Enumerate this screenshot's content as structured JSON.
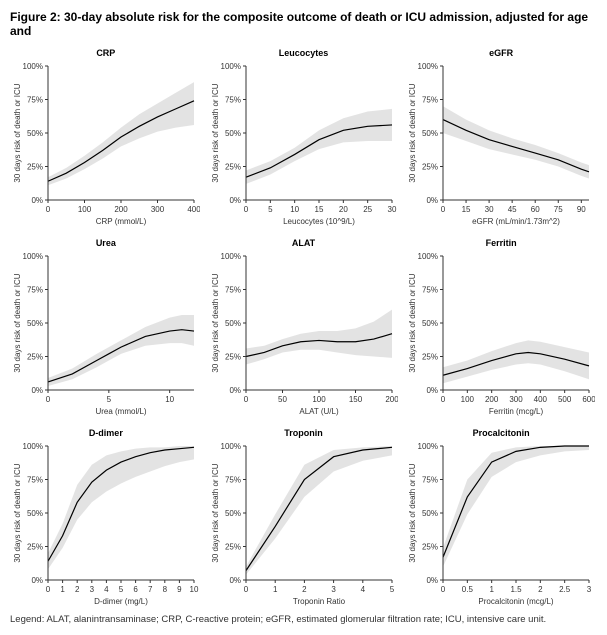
{
  "figure_title": "Figure 2: 30-day absolute risk for the composite outcome of death or ICU admission, adjusted for age and",
  "legend_text": "Legend: ALAT, alanintransaminase; CRP, C-reactive protein; eGFR, estimated glomerular filtration rate; ICU, intensive care unit.",
  "y_axis_label": "30 days risk of death or ICU",
  "y_tick_format": "percent",
  "y_lim": [
    0,
    100
  ],
  "y_ticks": [
    0,
    25,
    50,
    75,
    100
  ],
  "colors": {
    "line": "#000000",
    "ribbon": "#cccccc",
    "ribbon_opacity": 0.55,
    "background": "#ffffff",
    "axis": "#333333",
    "text": "#333333"
  },
  "fonts": {
    "figure_title_pt": 12,
    "panel_title_pt": 9,
    "tick_pt": 8,
    "axis_label_pt": 8,
    "legend_pt": 9.5
  },
  "line_width": 1.2,
  "panels": [
    {
      "title": "CRP",
      "x_label": "CRP (mmol/L)",
      "x_lim": [
        0,
        400
      ],
      "x_ticks": [
        0,
        100,
        200,
        300,
        400
      ],
      "x": [
        0,
        50,
        100,
        150,
        200,
        250,
        300,
        350,
        400
      ],
      "y": [
        14,
        20,
        28,
        37,
        47,
        55,
        62,
        68,
        74
      ],
      "lo": [
        11,
        16,
        23,
        31,
        40,
        46,
        51,
        54,
        56
      ],
      "hi": [
        17,
        24,
        33,
        43,
        54,
        64,
        72,
        80,
        88
      ]
    },
    {
      "title": "Leucocytes",
      "x_label": "Leucocytes (10^9/L)",
      "x_lim": [
        0,
        30
      ],
      "x_ticks": [
        0,
        5,
        10,
        15,
        20,
        25,
        30
      ],
      "x": [
        0,
        5,
        10,
        15,
        20,
        25,
        30
      ],
      "y": [
        17,
        24,
        34,
        45,
        52,
        55,
        56
      ],
      "lo": [
        12,
        19,
        29,
        38,
        43,
        44,
        44
      ],
      "hi": [
        22,
        29,
        39,
        52,
        61,
        66,
        68
      ]
    },
    {
      "title": "eGFR",
      "x_label": "eGFR (mL/min/1.73m^2)",
      "x_lim": [
        0,
        95
      ],
      "x_ticks": [
        0,
        15,
        30,
        45,
        60,
        75,
        90
      ],
      "x": [
        0,
        15,
        30,
        45,
        60,
        75,
        90,
        95
      ],
      "y": [
        60,
        52,
        45,
        40,
        35,
        30,
        23,
        21
      ],
      "lo": [
        50,
        44,
        38,
        34,
        30,
        25,
        18,
        16
      ],
      "hi": [
        70,
        60,
        52,
        46,
        41,
        35,
        28,
        26
      ]
    },
    {
      "title": "Urea",
      "x_label": "Urea (mmol/L)",
      "x_lim": [
        0,
        12
      ],
      "x_ticks": [
        0,
        5,
        10
      ],
      "x": [
        0,
        2,
        4,
        5,
        6,
        8,
        10,
        11,
        12
      ],
      "y": [
        6,
        12,
        22,
        27,
        32,
        40,
        44,
        45,
        44
      ],
      "lo": [
        3,
        8,
        17,
        22,
        27,
        33,
        35,
        35,
        33
      ],
      "hi": [
        9,
        16,
        27,
        32,
        37,
        47,
        54,
        56,
        56
      ]
    },
    {
      "title": "ALAT",
      "x_label": "ALAT (U/L)",
      "x_lim": [
        0,
        200
      ],
      "x_ticks": [
        0,
        50,
        100,
        150,
        200
      ],
      "x": [
        0,
        25,
        50,
        75,
        100,
        125,
        150,
        175,
        200
      ],
      "y": [
        25,
        28,
        33,
        36,
        37,
        36,
        36,
        38,
        42
      ],
      "lo": [
        19,
        23,
        28,
        30,
        30,
        28,
        26,
        25,
        24
      ],
      "hi": [
        31,
        33,
        38,
        42,
        44,
        44,
        46,
        51,
        60
      ]
    },
    {
      "title": "Ferritin",
      "x_label": "Ferritin (mcg/L)",
      "x_lim": [
        0,
        600
      ],
      "x_ticks": [
        0,
        100,
        200,
        300,
        400,
        500,
        600
      ],
      "x": [
        0,
        100,
        200,
        300,
        350,
        400,
        500,
        600
      ],
      "y": [
        11,
        16,
        22,
        27,
        28,
        27,
        23,
        18
      ],
      "lo": [
        5,
        10,
        15,
        19,
        20,
        19,
        14,
        8
      ],
      "hi": [
        17,
        22,
        29,
        35,
        37,
        36,
        32,
        28
      ]
    },
    {
      "title": "D-dimer",
      "x_label": "D-dimer (mg/L)",
      "x_lim": [
        0,
        10
      ],
      "x_ticks": [
        0,
        1,
        2,
        3,
        4,
        5,
        6,
        7,
        8,
        9,
        10
      ],
      "x": [
        0,
        1,
        2,
        3,
        4,
        5,
        6,
        7,
        8,
        9,
        10
      ],
      "y": [
        14,
        33,
        58,
        73,
        82,
        88,
        92,
        95,
        97,
        98,
        99
      ],
      "lo": [
        8,
        24,
        45,
        58,
        66,
        72,
        77,
        81,
        85,
        88,
        90
      ],
      "hi": [
        20,
        42,
        71,
        86,
        93,
        96,
        98,
        99,
        99,
        100,
        100
      ]
    },
    {
      "title": "Troponin",
      "x_label": "Troponin Ratio",
      "x_lim": [
        0,
        5
      ],
      "x_ticks": [
        0,
        1,
        2,
        3,
        4,
        5
      ],
      "x": [
        0,
        1,
        2,
        3,
        4,
        5
      ],
      "y": [
        7,
        40,
        75,
        92,
        97,
        99
      ],
      "lo": [
        4,
        31,
        62,
        81,
        89,
        93
      ],
      "hi": [
        10,
        49,
        86,
        97,
        99,
        100
      ]
    },
    {
      "title": "Procalcitonin",
      "x_label": "Procalcitonin (mcg/L)",
      "x_lim": [
        0,
        3
      ],
      "x_ticks": [
        0,
        0.5,
        1.0,
        1.5,
        2.0,
        2.5,
        3.0
      ],
      "x": [
        0,
        0.5,
        1.0,
        1.5,
        2.0,
        2.5,
        3.0
      ],
      "y": [
        17,
        62,
        88,
        96,
        99,
        100,
        100
      ],
      "lo": [
        10,
        49,
        77,
        88,
        93,
        96,
        97
      ],
      "hi": [
        24,
        75,
        95,
        99,
        100,
        100,
        100
      ]
    }
  ]
}
